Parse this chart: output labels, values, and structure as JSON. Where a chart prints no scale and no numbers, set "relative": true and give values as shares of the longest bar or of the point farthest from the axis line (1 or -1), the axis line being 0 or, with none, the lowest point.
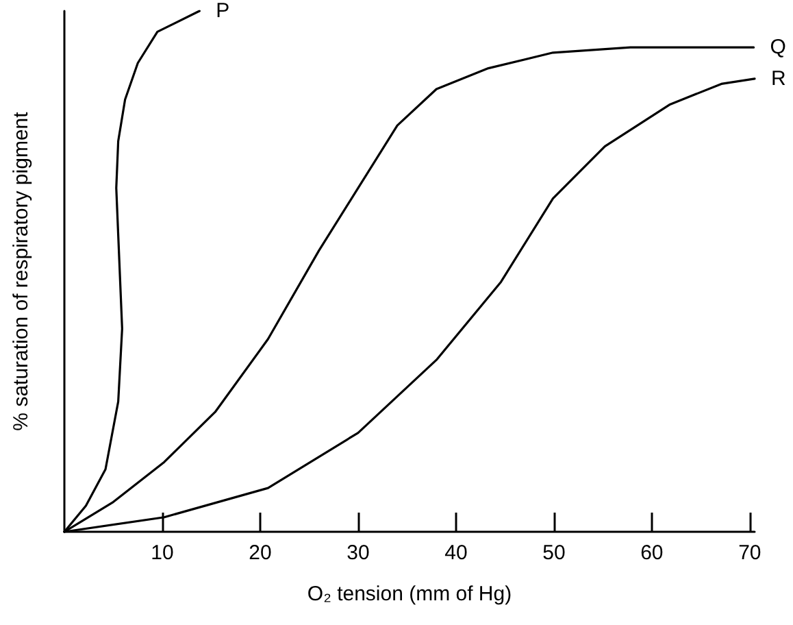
{
  "chart_data": {
    "type": "line",
    "relative": true,
    "xlabel": "O₂ tension (mm of Hg)",
    "ylabel": "% saturation of respiratory pigment",
    "xlim": [
      0,
      70.5
    ],
    "xticks": [
      10,
      20,
      30,
      40,
      50,
      60,
      70
    ],
    "grid": false,
    "legend": false,
    "marker": "none",
    "line_style": "solid",
    "series": [
      {
        "name": "P",
        "color": "#000000",
        "x": [
          0,
          2.2,
          4.2,
          5.5,
          5.9,
          5.3,
          5.5,
          6.2,
          7.5,
          9.5,
          13.8
        ],
        "values": [
          0,
          0.05,
          0.12,
          0.25,
          0.39,
          0.66,
          0.75,
          0.83,
          0.9,
          0.96,
          1
        ]
      },
      {
        "name": "Q",
        "color": "#000000",
        "x": [
          0,
          4.9,
          10.2,
          15.4,
          20.8,
          26,
          30,
          34,
          38,
          43.3,
          49.9,
          57.8,
          70.4
        ],
        "values": [
          0,
          0.056,
          0.134,
          0.23,
          0.37,
          0.54,
          0.66,
          0.78,
          0.85,
          0.89,
          0.92,
          0.93,
          0.93
        ]
      },
      {
        "name": "R",
        "color": "#000000",
        "x": [
          0,
          10.2,
          20.8,
          30,
          38,
          44.6,
          49.9,
          55.2,
          61.8,
          67.1,
          70.5
        ],
        "values": [
          0,
          0.028,
          0.084,
          0.19,
          0.33,
          0.48,
          0.64,
          0.74,
          0.82,
          0.86,
          0.87
        ]
      }
    ]
  }
}
